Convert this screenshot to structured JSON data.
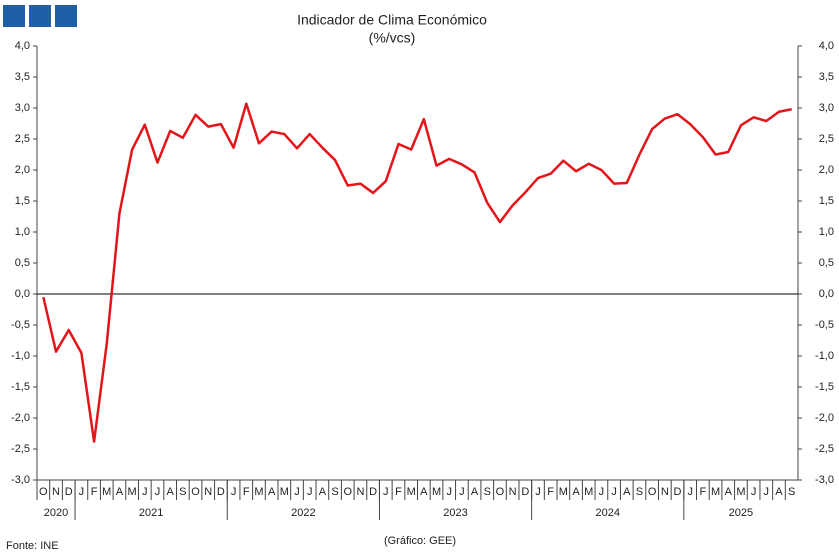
{
  "chart_data": {
    "type": "line",
    "title": "Indicador de Clima Económico",
    "subtitle": "(%/vcs)",
    "source": "Fonte: INE",
    "credit": "(Gráfico: GEE)",
    "categories": [
      "O",
      "N",
      "D",
      "J",
      "F",
      "M",
      "A",
      "M",
      "J",
      "J",
      "A",
      "S",
      "O",
      "N",
      "D",
      "J",
      "F",
      "M",
      "A",
      "M",
      "J",
      "J",
      "A",
      "S",
      "O",
      "N",
      "D",
      "J",
      "F",
      "M",
      "A",
      "M",
      "J",
      "J",
      "A",
      "S",
      "O",
      "N",
      "D",
      "J",
      "F",
      "M",
      "A",
      "M",
      "J",
      "J",
      "A",
      "S",
      "O",
      "N",
      "D",
      "J",
      "F",
      "M",
      "A",
      "M",
      "J",
      "J",
      "A",
      "S"
    ],
    "years": [
      "2020",
      "2021",
      "2022",
      "2023",
      "2024",
      "2025"
    ],
    "series": [
      {
        "name": "Indicador de Clima Económico",
        "color": "#e3151a",
        "values": [
          -0.05,
          -0.93,
          -0.58,
          -0.95,
          -2.38,
          -0.8,
          1.3,
          2.33,
          2.73,
          2.12,
          2.63,
          2.52,
          2.89,
          2.7,
          2.74,
          2.36,
          3.07,
          2.43,
          2.62,
          2.58,
          2.35,
          2.58,
          2.36,
          2.16,
          1.75,
          1.78,
          1.63,
          1.82,
          2.42,
          2.33,
          2.82,
          2.07,
          2.18,
          2.09,
          1.96,
          1.47,
          1.16,
          1.43,
          1.64,
          1.87,
          1.94,
          2.15,
          1.98,
          2.1,
          2.0,
          1.78,
          1.79,
          2.25,
          2.66,
          2.83,
          2.9,
          2.74,
          2.53,
          2.25,
          2.29,
          2.72,
          2.85,
          2.79,
          2.94,
          2.98
        ]
      }
    ],
    "ylim": [
      -3,
      4
    ],
    "yticks": [
      {
        "value": -3,
        "label": "-3,0"
      },
      {
        "value": -2.5,
        "label": "-2,5"
      },
      {
        "value": -2,
        "label": "-2,0"
      },
      {
        "value": -1.5,
        "label": "-1,5"
      },
      {
        "value": -1,
        "label": "-1,0"
      },
      {
        "value": -0.5,
        "label": "-0,5"
      },
      {
        "value": 0,
        "label": "0,0"
      },
      {
        "value": 0.5,
        "label": "0,5"
      },
      {
        "value": 1,
        "label": "1,0"
      },
      {
        "value": 1.5,
        "label": "1,5"
      },
      {
        "value": 2,
        "label": "2,0"
      },
      {
        "value": 2.5,
        "label": "2,5"
      },
      {
        "value": 3,
        "label": "3,0"
      },
      {
        "value": 3.5,
        "label": "3,5"
      },
      {
        "value": 4,
        "label": "4,0"
      }
    ],
    "y2lim": [
      -3,
      4
    ],
    "y2ticks": [
      {
        "value": -3,
        "label": "-3,0"
      },
      {
        "value": -2.5,
        "label": "-2,5"
      },
      {
        "value": -2,
        "label": "-2,0"
      },
      {
        "value": -1.5,
        "label": "-1,5"
      },
      {
        "value": -1,
        "label": "-1,0"
      },
      {
        "value": -0.5,
        "label": "-0,5"
      },
      {
        "value": 0,
        "label": "0,0"
      },
      {
        "value": 0.5,
        "label": "0,5"
      },
      {
        "value": 1,
        "label": "1,0"
      },
      {
        "value": 1.5,
        "label": "1,5"
      },
      {
        "value": 2,
        "label": "2,0"
      },
      {
        "value": 2.5,
        "label": "2,5"
      },
      {
        "value": 3,
        "label": "3,0"
      },
      {
        "value": 3.5,
        "label": "3,5"
      },
      {
        "value": 4,
        "label": "4,0"
      }
    ],
    "grid": false
  }
}
